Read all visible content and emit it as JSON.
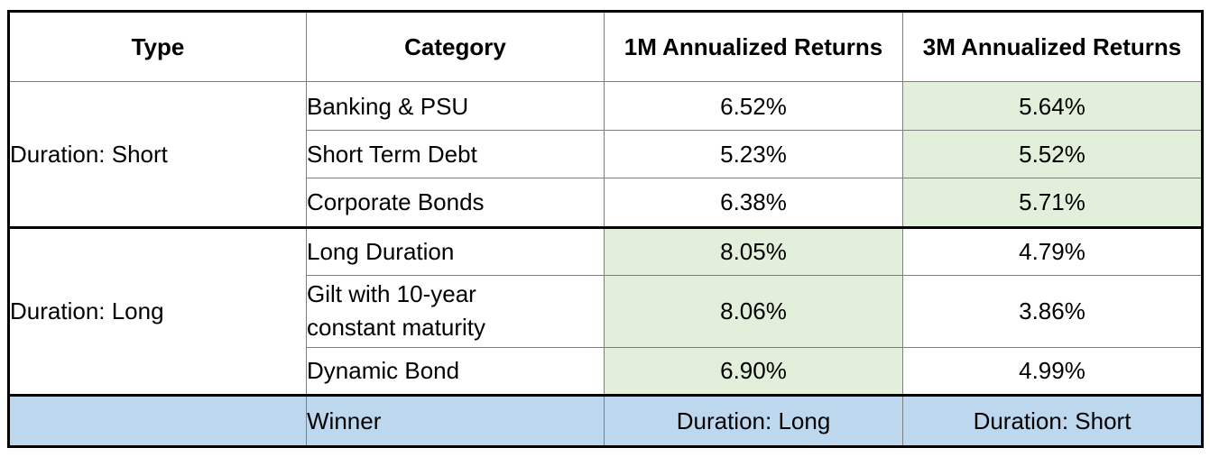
{
  "chart_data": {
    "type": "table",
    "columns": [
      "Type",
      "Category",
      "1M Annualized Returns",
      "3M Annualized Returns"
    ],
    "groups": [
      {
        "type": "Duration: Short",
        "rows": [
          {
            "category": "Banking & PSU",
            "m1": "6.52%",
            "m3": "5.64%"
          },
          {
            "category": "Short Term Debt",
            "m1": "5.23%",
            "m3": "5.52%"
          },
          {
            "category": "Corporate Bonds",
            "m1": "6.38%",
            "m3": "5.71%"
          }
        ]
      },
      {
        "type": "Duration: Long",
        "rows": [
          {
            "category": "Long Duration",
            "m1": "8.05%",
            "m3": "4.79%"
          },
          {
            "category": "Gilt with 10-year constant maturity",
            "m1": "8.06%",
            "m3": "3.86%"
          },
          {
            "category": "Dynamic Bond",
            "m1": "6.90%",
            "m3": "4.99%"
          }
        ]
      }
    ],
    "winner": {
      "label": "Winner",
      "m1": "Duration: Long",
      "m3": "Duration: Short"
    }
  },
  "colors": {
    "highlight_green": "#e2efda",
    "winner_row_blue": "#bdd7ee",
    "border": "#000000"
  }
}
